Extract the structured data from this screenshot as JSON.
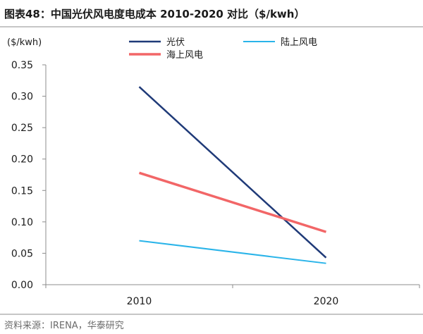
{
  "header": {
    "prefix": "图表48："
  },
  "source": "资料来源：IRENA，华泰研究",
  "chart_data": {
    "type": "line",
    "title": "中国光伏风电度电成本 2010-2020 对比（$/kwh）",
    "xlabel": "",
    "ylabel": "($/kwh)",
    "categories": [
      "2010",
      "2020"
    ],
    "ylim": [
      0,
      0.35
    ],
    "yticks": [
      "0.00",
      "0.05",
      "0.10",
      "0.15",
      "0.20",
      "0.25",
      "0.30",
      "0.35"
    ],
    "grid": false,
    "legend": "top",
    "series": [
      {
        "name": "光伏",
        "values": [
          0.315,
          0.043
        ],
        "color": "#1f3a78"
      },
      {
        "name": "陆上风电",
        "values": [
          0.07,
          0.034
        ],
        "color": "#2ab4e9"
      },
      {
        "name": "海上风电",
        "values": [
          0.178,
          0.084
        ],
        "color": "#f26667"
      }
    ]
  }
}
